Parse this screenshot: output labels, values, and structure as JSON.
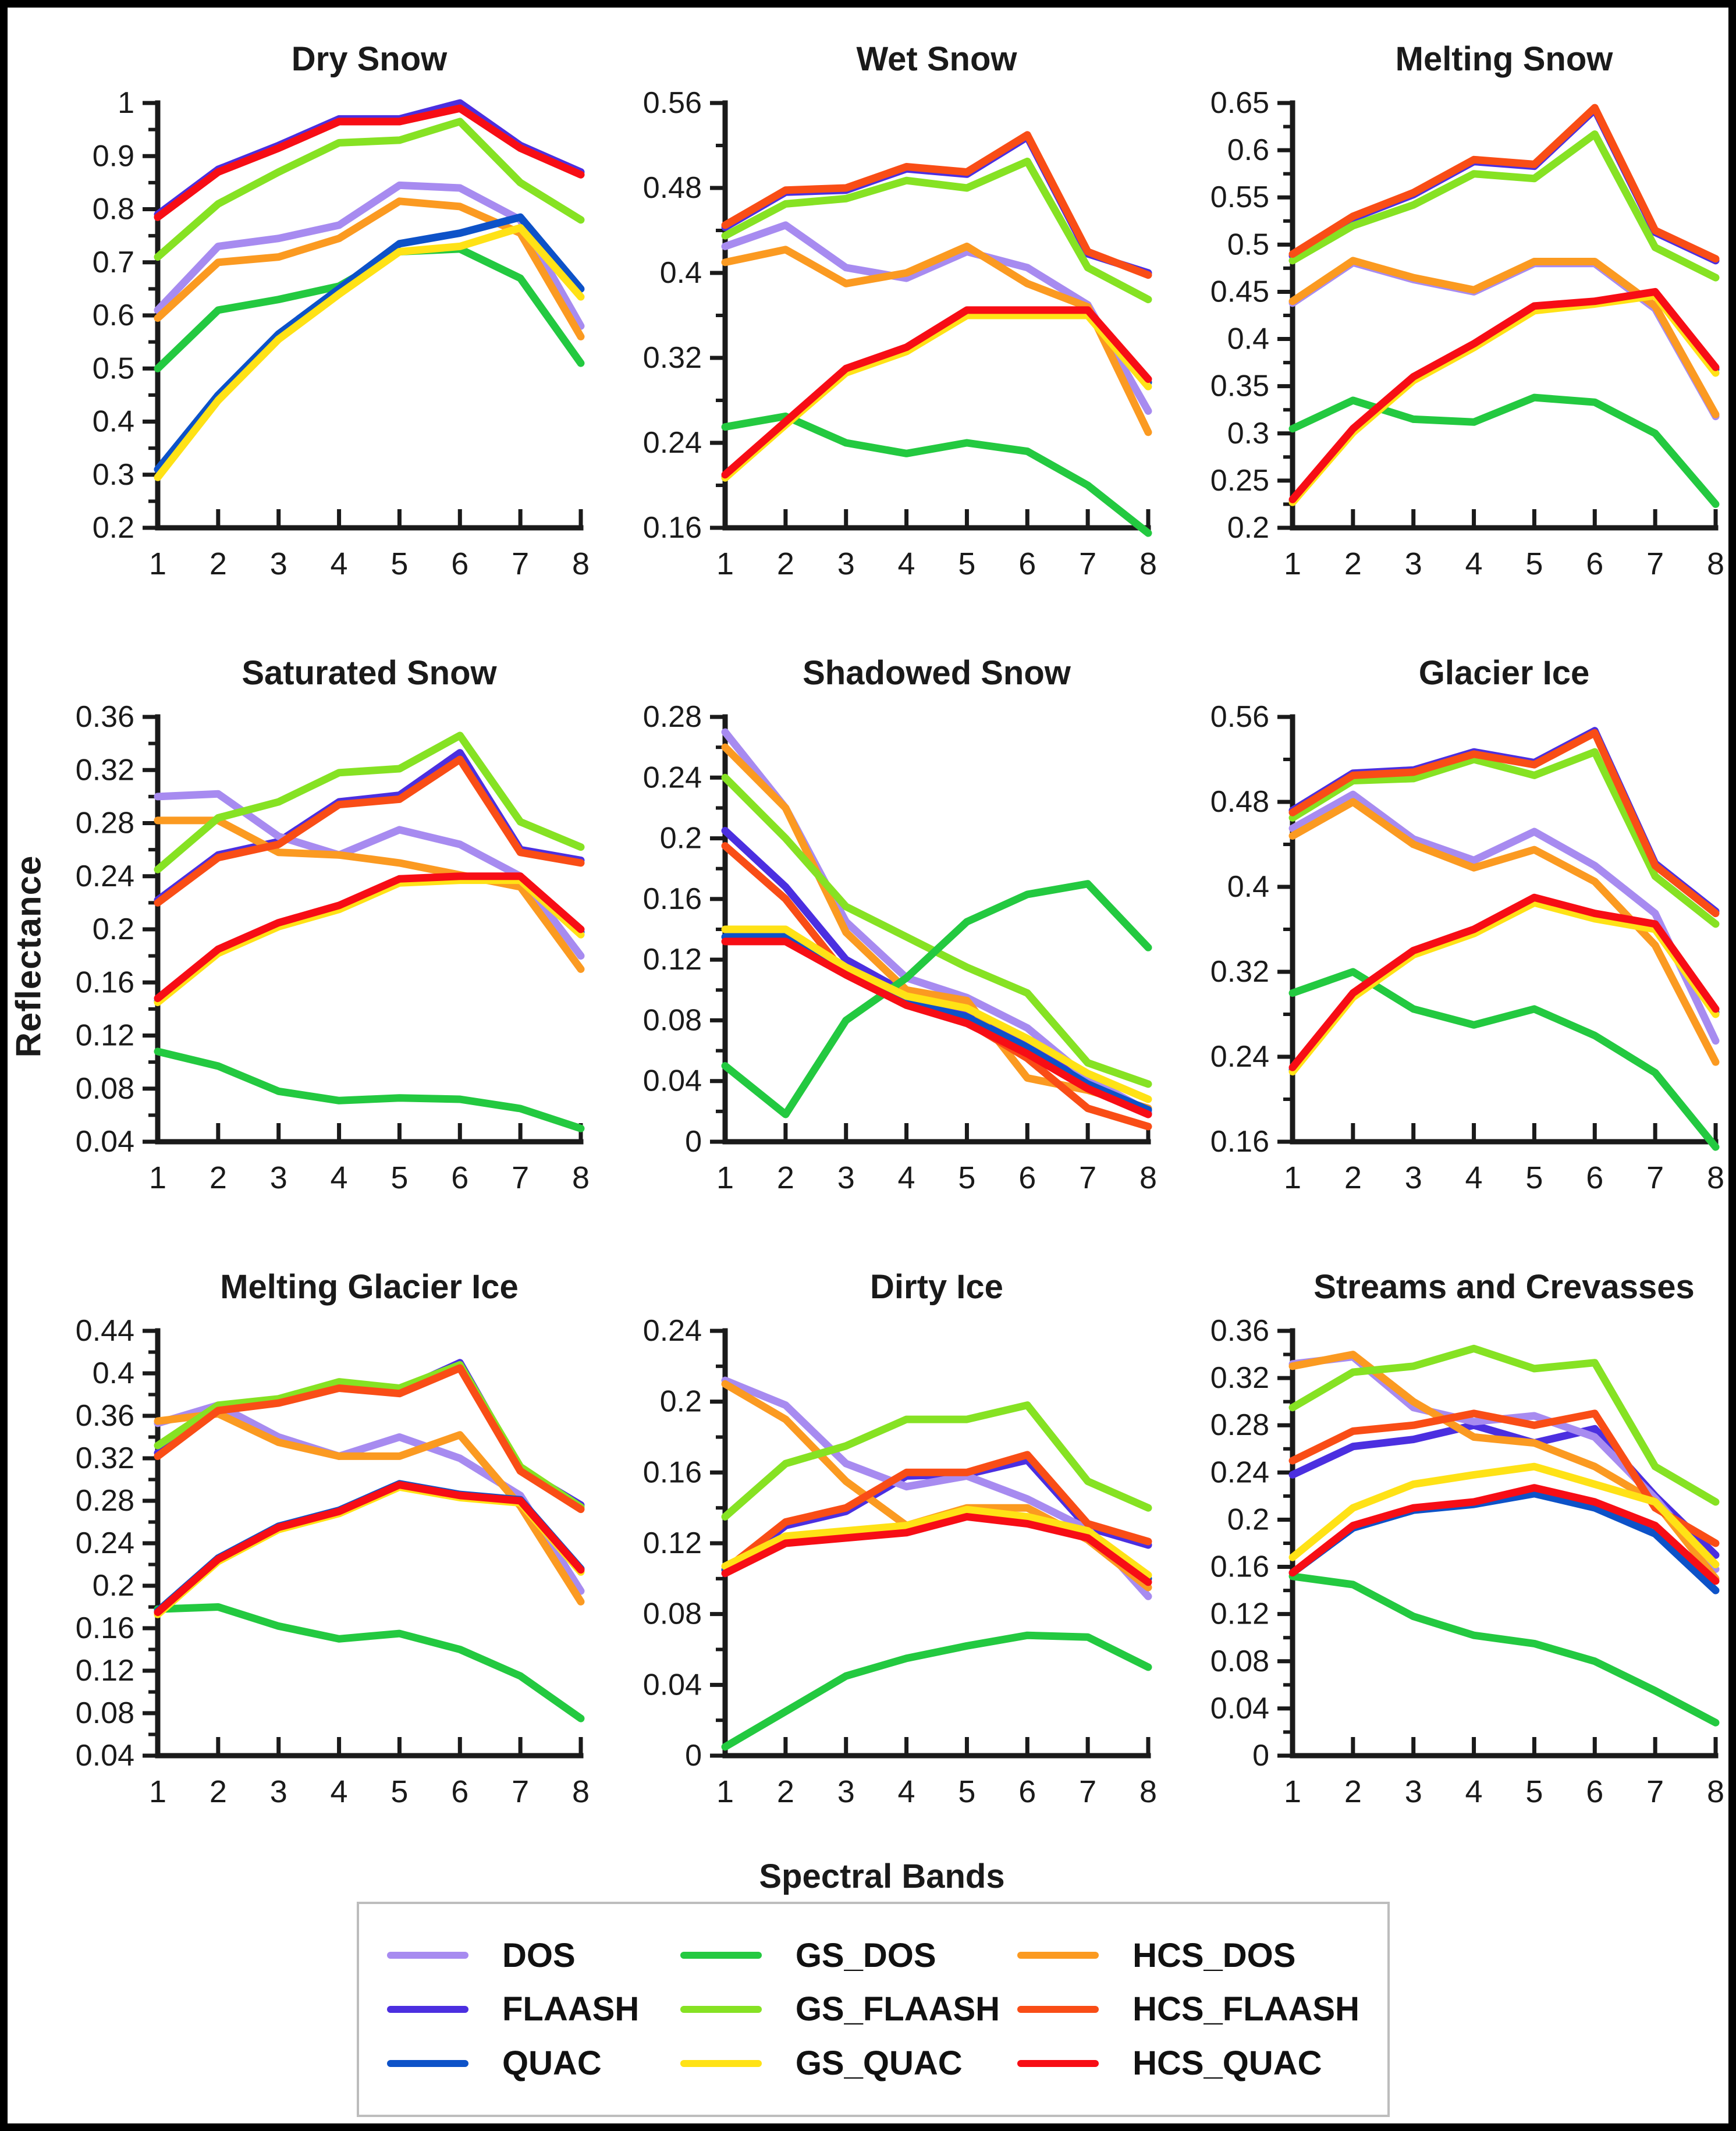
{
  "figure": {
    "ylabel": "Reflectance",
    "xlabel": "Spectral Bands"
  },
  "legend": {
    "items": [
      {
        "label": "DOS",
        "color": "#a78bf0"
      },
      {
        "label": "FLAASH",
        "color": "#4b2fe0"
      },
      {
        "label": "QUAC",
        "color": "#0d52c8"
      },
      {
        "label": "GS_DOS",
        "color": "#23c940"
      },
      {
        "label": "GS_FLAASH",
        "color": "#86e223"
      },
      {
        "label": "GS_QUAC",
        "color": "#ffe216"
      },
      {
        "label": "HCS_DOS",
        "color": "#fb9a21"
      },
      {
        "label": "HCS_FLAASH",
        "color": "#f94d16"
      },
      {
        "label": "HCS_QUAC",
        "color": "#f70d15"
      }
    ]
  },
  "paint_order": [
    "FLAASH",
    "DOS",
    "HCS_DOS",
    "GS_FLAASH",
    "HCS_FLAASH",
    "GS_DOS",
    "QUAC",
    "GS_QUAC",
    "HCS_QUAC"
  ],
  "chart_data": [
    {
      "type": "line",
      "title": "Dry Snow",
      "x": [
        1,
        2,
        3,
        4,
        5,
        6,
        7,
        8
      ],
      "ylim": [
        0.2,
        1.0
      ],
      "y_tick_labels": [
        "0.2",
        "0.3",
        "0.4",
        "0.5",
        "0.6",
        "0.7",
        "0.8",
        "0.9",
        "1"
      ],
      "series": {
        "DOS": [
          0.61,
          0.73,
          0.745,
          0.77,
          0.845,
          0.84,
          0.78,
          0.58
        ],
        "FLAASH": [
          0.79,
          0.875,
          0.92,
          0.97,
          0.97,
          1.0,
          0.92,
          0.87
        ],
        "QUAC": [
          0.31,
          0.45,
          0.565,
          0.65,
          0.735,
          0.755,
          0.785,
          0.65
        ],
        "GS_DOS": [
          0.5,
          0.61,
          0.63,
          0.655,
          0.72,
          0.725,
          0.67,
          0.51
        ],
        "GS_FLAASH": [
          0.71,
          0.81,
          0.87,
          0.925,
          0.93,
          0.965,
          0.85,
          0.78
        ],
        "GS_QUAC": [
          0.295,
          0.44,
          0.555,
          0.64,
          0.72,
          0.73,
          0.765,
          0.635
        ],
        "HCS_DOS": [
          0.595,
          0.7,
          0.71,
          0.745,
          0.815,
          0.805,
          0.755,
          0.56
        ],
        "HCS_FLAASH": [
          0.785,
          0.87,
          0.915,
          0.965,
          0.965,
          0.99,
          0.915,
          0.865
        ],
        "HCS_QUAC": [
          0.785,
          0.87,
          0.915,
          0.965,
          0.965,
          0.99,
          0.915,
          0.865
        ]
      }
    },
    {
      "type": "line",
      "title": "Wet Snow",
      "x": [
        1,
        2,
        3,
        4,
        5,
        6,
        7,
        8
      ],
      "ylim": [
        0.16,
        0.56
      ],
      "y_tick_labels": [
        "0.16",
        "0.24",
        "0.32",
        "0.4",
        "0.48",
        "0.56"
      ],
      "series": {
        "DOS": [
          0.425,
          0.445,
          0.405,
          0.395,
          0.42,
          0.405,
          0.37,
          0.27
        ],
        "FLAASH": [
          0.443,
          0.476,
          0.478,
          0.498,
          0.493,
          0.528,
          0.418,
          0.4
        ],
        "QUAC": [
          0.208,
          0.258,
          0.308,
          0.328,
          0.362,
          0.362,
          0.362,
          0.297
        ],
        "GS_DOS": [
          0.255,
          0.265,
          0.24,
          0.23,
          0.24,
          0.232,
          0.2,
          0.155
        ],
        "GS_FLAASH": [
          0.435,
          0.465,
          0.47,
          0.487,
          0.48,
          0.505,
          0.405,
          0.375
        ],
        "GS_QUAC": [
          0.207,
          0.257,
          0.306,
          0.326,
          0.36,
          0.36,
          0.36,
          0.293
        ],
        "HCS_DOS": [
          0.41,
          0.422,
          0.39,
          0.4,
          0.425,
          0.39,
          0.368,
          0.25
        ],
        "HCS_FLAASH": [
          0.445,
          0.478,
          0.48,
          0.5,
          0.495,
          0.53,
          0.42,
          0.398
        ],
        "HCS_QUAC": [
          0.21,
          0.26,
          0.31,
          0.33,
          0.365,
          0.365,
          0.365,
          0.3
        ]
      }
    },
    {
      "type": "line",
      "title": "Melting Snow",
      "x": [
        1,
        2,
        3,
        4,
        5,
        6,
        7,
        8
      ],
      "ylim": [
        0.2,
        0.65
      ],
      "y_tick_labels": [
        "0.2",
        "0.25",
        "0.3",
        "0.35",
        "0.4",
        "0.45",
        "0.5",
        "0.55",
        "0.6",
        "0.65"
      ],
      "series": {
        "DOS": [
          0.438,
          0.481,
          0.463,
          0.45,
          0.48,
          0.48,
          0.432,
          0.318
        ],
        "FLAASH": [
          0.488,
          0.528,
          0.553,
          0.588,
          0.583,
          0.643,
          0.513,
          0.483
        ],
        "QUAC": [
          0.228,
          0.303,
          0.358,
          0.393,
          0.433,
          0.438,
          0.448,
          0.368
        ],
        "GS_DOS": [
          0.305,
          0.335,
          0.315,
          0.312,
          0.338,
          0.333,
          0.3,
          0.225
        ],
        "GS_FLAASH": [
          0.483,
          0.52,
          0.542,
          0.575,
          0.57,
          0.617,
          0.497,
          0.465
        ],
        "GS_QUAC": [
          0.227,
          0.301,
          0.356,
          0.391,
          0.43,
          0.437,
          0.446,
          0.364
        ],
        "HCS_DOS": [
          0.44,
          0.483,
          0.465,
          0.452,
          0.482,
          0.482,
          0.435,
          0.32
        ],
        "HCS_FLAASH": [
          0.49,
          0.53,
          0.555,
          0.59,
          0.585,
          0.645,
          0.515,
          0.485
        ],
        "HCS_QUAC": [
          0.23,
          0.305,
          0.36,
          0.395,
          0.435,
          0.44,
          0.45,
          0.37
        ]
      }
    },
    {
      "type": "line",
      "title": "Saturated Snow",
      "x": [
        1,
        2,
        3,
        4,
        5,
        6,
        7,
        8
      ],
      "ylim": [
        0.04,
        0.36
      ],
      "y_tick_labels": [
        "0.04",
        "0.08",
        "0.12",
        "0.16",
        "0.2",
        "0.24",
        "0.28",
        "0.32",
        "0.36"
      ],
      "series": {
        "DOS": [
          0.3,
          0.302,
          0.27,
          0.256,
          0.275,
          0.264,
          0.24,
          0.18
        ],
        "FLAASH": [
          0.222,
          0.256,
          0.266,
          0.296,
          0.301,
          0.333,
          0.26,
          0.252
        ],
        "QUAC": [
          0.146,
          0.183,
          0.203,
          0.216,
          0.236,
          0.238,
          0.238,
          0.198
        ],
        "GS_DOS": [
          0.108,
          0.097,
          0.078,
          0.071,
          0.073,
          0.072,
          0.065,
          0.05
        ],
        "GS_FLAASH": [
          0.245,
          0.284,
          0.296,
          0.318,
          0.321,
          0.346,
          0.281,
          0.262
        ],
        "GS_QUAC": [
          0.145,
          0.182,
          0.202,
          0.215,
          0.235,
          0.237,
          0.237,
          0.196
        ],
        "HCS_DOS": [
          0.282,
          0.282,
          0.258,
          0.256,
          0.25,
          0.241,
          0.232,
          0.17
        ],
        "HCS_FLAASH": [
          0.22,
          0.254,
          0.264,
          0.294,
          0.298,
          0.328,
          0.258,
          0.25
        ],
        "HCS_QUAC": [
          0.148,
          0.185,
          0.205,
          0.218,
          0.238,
          0.24,
          0.24,
          0.2
        ]
      }
    },
    {
      "type": "line",
      "title": "Shadowed Snow",
      "x": [
        1,
        2,
        3,
        4,
        5,
        6,
        7,
        8
      ],
      "ylim": [
        0,
        0.28
      ],
      "y_tick_labels": [
        "0",
        "0.04",
        "0.08",
        "0.12",
        "0.16",
        "0.2",
        "0.24",
        "0.28"
      ],
      "series": {
        "DOS": [
          0.27,
          0.22,
          0.145,
          0.108,
          0.095,
          0.075,
          0.042,
          0.02
        ],
        "FLAASH": [
          0.205,
          0.168,
          0.12,
          0.098,
          0.085,
          0.063,
          0.04,
          0.019
        ],
        "QUAC": [
          0.135,
          0.135,
          0.112,
          0.092,
          0.082,
          0.062,
          0.038,
          0.021
        ],
        "GS_DOS": [
          0.05,
          0.018,
          0.08,
          0.108,
          0.145,
          0.163,
          0.17,
          0.128
        ],
        "GS_FLAASH": [
          0.24,
          0.2,
          0.155,
          0.135,
          0.115,
          0.098,
          0.052,
          0.038
        ],
        "GS_QUAC": [
          0.14,
          0.14,
          0.115,
          0.096,
          0.088,
          0.068,
          0.045,
          0.028
        ],
        "HCS_DOS": [
          0.26,
          0.22,
          0.138,
          0.1,
          0.093,
          0.042,
          0.034,
          0.022
        ],
        "HCS_FLAASH": [
          0.195,
          0.16,
          0.11,
          0.09,
          0.079,
          0.055,
          0.022,
          0.01
        ],
        "HCS_QUAC": [
          0.132,
          0.132,
          0.11,
          0.09,
          0.078,
          0.058,
          0.035,
          0.018
        ]
      }
    },
    {
      "type": "line",
      "title": "Glacier Ice",
      "x": [
        1,
        2,
        3,
        4,
        5,
        6,
        7,
        8
      ],
      "ylim": [
        0.16,
        0.56
      ],
      "y_tick_labels": [
        "0.16",
        "0.24",
        "0.32",
        "0.4",
        "0.48",
        "0.56"
      ],
      "series": {
        "DOS": [
          0.455,
          0.487,
          0.445,
          0.425,
          0.452,
          0.42,
          0.375,
          0.255
        ],
        "FLAASH": [
          0.472,
          0.507,
          0.51,
          0.527,
          0.517,
          0.547,
          0.422,
          0.377
        ],
        "QUAC": [
          0.228,
          0.298,
          0.338,
          0.358,
          0.387,
          0.372,
          0.362,
          0.282
        ],
        "GS_DOS": [
          0.3,
          0.32,
          0.285,
          0.27,
          0.285,
          0.26,
          0.225,
          0.155
        ],
        "GS_FLAASH": [
          0.465,
          0.5,
          0.502,
          0.52,
          0.505,
          0.527,
          0.41,
          0.365
        ],
        "GS_QUAC": [
          0.226,
          0.296,
          0.336,
          0.356,
          0.385,
          0.37,
          0.36,
          0.28
        ],
        "HCS_DOS": [
          0.448,
          0.48,
          0.44,
          0.418,
          0.435,
          0.405,
          0.345,
          0.235
        ],
        "HCS_FLAASH": [
          0.47,
          0.505,
          0.508,
          0.525,
          0.515,
          0.545,
          0.42,
          0.375
        ],
        "HCS_QUAC": [
          0.23,
          0.3,
          0.34,
          0.36,
          0.39,
          0.375,
          0.365,
          0.285
        ]
      }
    },
    {
      "type": "line",
      "title": "Melting Glacier Ice",
      "x": [
        1,
        2,
        3,
        4,
        5,
        6,
        7,
        8
      ],
      "ylim": [
        0.04,
        0.44
      ],
      "y_tick_labels": [
        "0.04",
        "0.08",
        "0.12",
        "0.16",
        "0.2",
        "0.24",
        "0.28",
        "0.32",
        "0.36",
        "0.4",
        "0.44"
      ],
      "series": {
        "DOS": [
          0.353,
          0.37,
          0.34,
          0.322,
          0.34,
          0.32,
          0.285,
          0.195
        ],
        "FLAASH": [
          0.325,
          0.368,
          0.374,
          0.388,
          0.384,
          0.41,
          0.31,
          0.276
        ],
        "QUAC": [
          0.176,
          0.226,
          0.256,
          0.271,
          0.296,
          0.286,
          0.281,
          0.216
        ],
        "GS_DOS": [
          0.178,
          0.18,
          0.162,
          0.15,
          0.155,
          0.14,
          0.115,
          0.075
        ],
        "GS_FLAASH": [
          0.332,
          0.37,
          0.376,
          0.392,
          0.386,
          0.408,
          0.312,
          0.274
        ],
        "GS_QUAC": [
          0.173,
          0.223,
          0.253,
          0.268,
          0.293,
          0.283,
          0.278,
          0.213
        ],
        "HCS_DOS": [
          0.355,
          0.362,
          0.335,
          0.322,
          0.322,
          0.342,
          0.275,
          0.185
        ],
        "HCS_FLAASH": [
          0.322,
          0.365,
          0.372,
          0.386,
          0.381,
          0.405,
          0.308,
          0.272
        ],
        "HCS_QUAC": [
          0.175,
          0.225,
          0.255,
          0.27,
          0.295,
          0.285,
          0.28,
          0.215
        ]
      }
    },
    {
      "type": "line",
      "title": "Dirty Ice",
      "x": [
        1,
        2,
        3,
        4,
        5,
        6,
        7,
        8
      ],
      "ylim": [
        0,
        0.24
      ],
      "y_tick_labels": [
        "0",
        "0.04",
        "0.08",
        "0.12",
        "0.16",
        "0.2",
        "0.24"
      ],
      "series": {
        "DOS": [
          0.212,
          0.198,
          0.165,
          0.152,
          0.158,
          0.145,
          0.128,
          0.09
        ],
        "FLAASH": [
          0.103,
          0.13,
          0.138,
          0.158,
          0.159,
          0.167,
          0.129,
          0.119
        ],
        "QUAC": [
          0.105,
          0.122,
          0.125,
          0.128,
          0.137,
          0.133,
          0.125,
          0.1
        ],
        "GS_DOS": [
          0.005,
          0.025,
          0.045,
          0.055,
          0.062,
          0.068,
          0.067,
          0.05
        ],
        "GS_FLAASH": [
          0.135,
          0.165,
          0.175,
          0.19,
          0.19,
          0.198,
          0.155,
          0.14
        ],
        "GS_QUAC": [
          0.107,
          0.124,
          0.127,
          0.13,
          0.139,
          0.135,
          0.127,
          0.102
        ],
        "HCS_DOS": [
          0.21,
          0.19,
          0.155,
          0.13,
          0.14,
          0.14,
          0.122,
          0.095
        ],
        "HCS_FLAASH": [
          0.105,
          0.132,
          0.14,
          0.16,
          0.16,
          0.17,
          0.131,
          0.121
        ],
        "HCS_QUAC": [
          0.103,
          0.12,
          0.123,
          0.126,
          0.135,
          0.131,
          0.123,
          0.098
        ]
      }
    },
    {
      "type": "line",
      "title": "Streams and Crevasses",
      "x": [
        1,
        2,
        3,
        4,
        5,
        6,
        7,
        8
      ],
      "ylim": [
        0,
        0.36
      ],
      "y_tick_labels": [
        "0",
        "0.04",
        "0.08",
        "0.12",
        "0.16",
        "0.2",
        "0.24",
        "0.28",
        "0.32",
        "0.36"
      ],
      "series": {
        "DOS": [
          0.332,
          0.338,
          0.295,
          0.283,
          0.288,
          0.27,
          0.218,
          0.158
        ],
        "FLAASH": [
          0.238,
          0.262,
          0.268,
          0.28,
          0.265,
          0.277,
          0.22,
          0.17
        ],
        "QUAC": [
          0.155,
          0.193,
          0.208,
          0.213,
          0.222,
          0.21,
          0.188,
          0.14
        ],
        "GS_DOS": [
          0.152,
          0.145,
          0.118,
          0.102,
          0.095,
          0.08,
          0.055,
          0.028
        ],
        "GS_FLAASH": [
          0.295,
          0.325,
          0.33,
          0.345,
          0.328,
          0.333,
          0.245,
          0.215
        ],
        "GS_QUAC": [
          0.168,
          0.21,
          0.23,
          0.238,
          0.245,
          0.23,
          0.215,
          0.162
        ],
        "HCS_DOS": [
          0.33,
          0.34,
          0.3,
          0.27,
          0.265,
          0.245,
          0.215,
          0.15
        ],
        "HCS_FLAASH": [
          0.25,
          0.275,
          0.28,
          0.29,
          0.28,
          0.29,
          0.21,
          0.18
        ],
        "HCS_QUAC": [
          0.155,
          0.195,
          0.21,
          0.215,
          0.227,
          0.215,
          0.195,
          0.148
        ]
      }
    }
  ]
}
